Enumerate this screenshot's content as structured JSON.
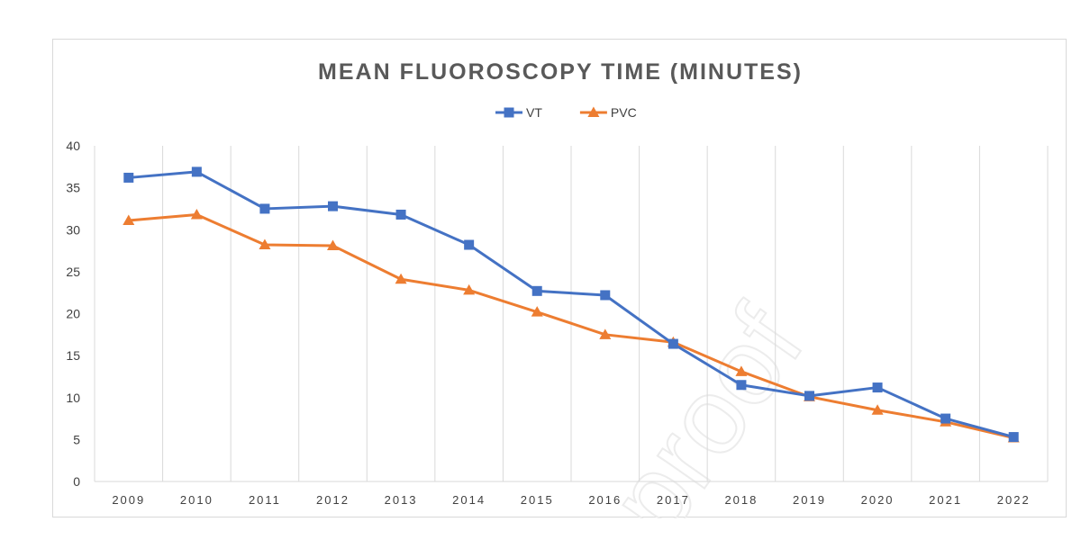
{
  "chart_data": {
    "type": "line",
    "title": "MEAN FLUOROSCOPY TIME (MINUTES)",
    "xlabel": "",
    "ylabel": "",
    "categories": [
      "2009",
      "2010",
      "2011",
      "2012",
      "2013",
      "2014",
      "2015",
      "2016",
      "2017",
      "2018",
      "2019",
      "2020",
      "2021",
      "2022"
    ],
    "ylim": [
      0,
      40
    ],
    "yticks": [
      0,
      5,
      10,
      15,
      20,
      25,
      30,
      35,
      40
    ],
    "grid": "vertical",
    "legend": "top-center",
    "series": [
      {
        "name": "VT",
        "color": "#4472c4",
        "marker": "square",
        "values": [
          36.2,
          36.9,
          32.5,
          32.8,
          31.8,
          28.2,
          22.7,
          22.2,
          16.4,
          11.5,
          10.2,
          11.2,
          7.5,
          5.3
        ]
      },
      {
        "name": "PVC",
        "color": "#ed7d31",
        "marker": "triangle",
        "values": [
          31.1,
          31.8,
          28.2,
          28.1,
          24.1,
          22.8,
          20.2,
          17.5,
          16.6,
          13.1,
          10.1,
          8.5,
          7.1,
          5.2
        ]
      }
    ]
  },
  "watermark": {
    "text": "proof"
  }
}
